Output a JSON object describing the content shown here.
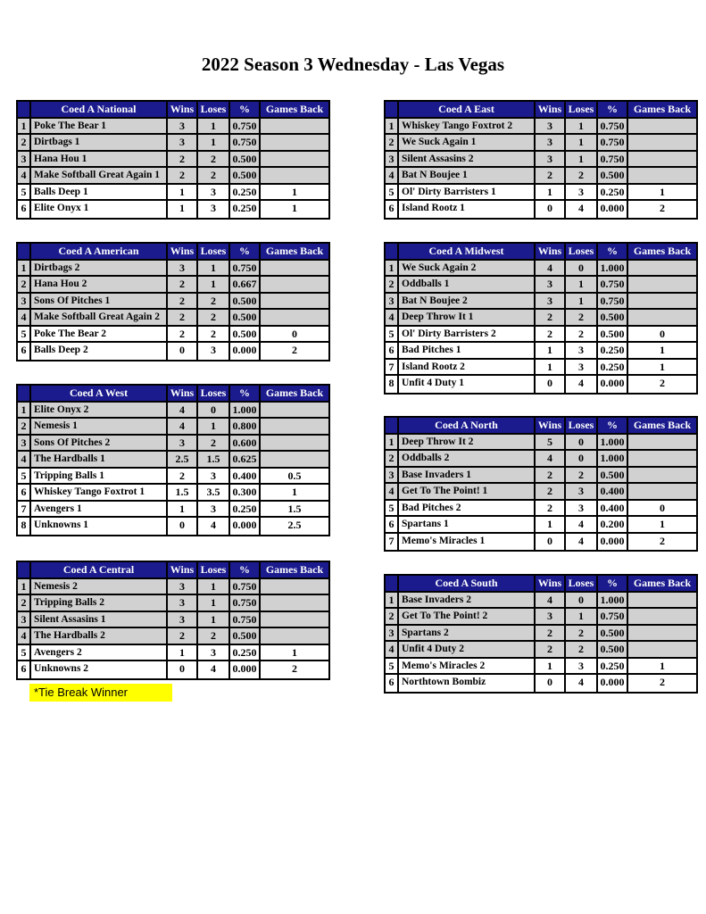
{
  "page": {
    "title": "2022 Season 3 Wednesday - Las Vegas"
  },
  "columns": {
    "wins": "Wins",
    "loses": "Loses",
    "pct": "%",
    "games_back": "Games Back"
  },
  "note": {
    "text": "*Tie Break Winner"
  },
  "colors": {
    "header_bg": "#1B1B8E",
    "header_text": "#FFFFFF",
    "shaded_row_bg": "#D1D1D1",
    "plain_row_bg": "#FFFFFF",
    "border": "#000000",
    "note_highlight": "#FFFF00"
  },
  "divisions": [
    {
      "name": "Coed A National",
      "rows": [
        {
          "rank": "1",
          "team": "Poke The Bear 1",
          "wins": "3",
          "loses": "1",
          "pct": "0.750",
          "games_back": "",
          "shaded": true
        },
        {
          "rank": "2",
          "team": "Dirtbags 1",
          "wins": "3",
          "loses": "1",
          "pct": "0.750",
          "games_back": "",
          "shaded": true
        },
        {
          "rank": "3",
          "team": "Hana Hou 1",
          "wins": "2",
          "loses": "2",
          "pct": "0.500",
          "games_back": "",
          "shaded": true
        },
        {
          "rank": "4",
          "team": "Make Softball Great Again 1",
          "wins": "2",
          "loses": "2",
          "pct": "0.500",
          "games_back": "",
          "shaded": true
        },
        {
          "rank": "5",
          "team": "Balls Deep 1",
          "wins": "1",
          "loses": "3",
          "pct": "0.250",
          "games_back": "1",
          "shaded": false
        },
        {
          "rank": "6",
          "team": "Elite Onyx 1",
          "wins": "1",
          "loses": "3",
          "pct": "0.250",
          "games_back": "1",
          "shaded": false
        }
      ]
    },
    {
      "name": "Coed A American",
      "rows": [
        {
          "rank": "1",
          "team": "Dirtbags 2",
          "wins": "3",
          "loses": "1",
          "pct": "0.750",
          "games_back": "",
          "shaded": true
        },
        {
          "rank": "2",
          "team": "Hana Hou 2",
          "wins": "2",
          "loses": "1",
          "pct": "0.667",
          "games_back": "",
          "shaded": true
        },
        {
          "rank": "3",
          "team": "Sons Of Pitches 1",
          "wins": "2",
          "loses": "2",
          "pct": "0.500",
          "games_back": "",
          "shaded": true
        },
        {
          "rank": "4",
          "team": "Make Softball Great Again 2",
          "wins": "2",
          "loses": "2",
          "pct": "0.500",
          "games_back": "",
          "shaded": true
        },
        {
          "rank": "5",
          "team": "Poke The Bear 2",
          "wins": "2",
          "loses": "2",
          "pct": "0.500",
          "games_back": "0",
          "shaded": false
        },
        {
          "rank": "6",
          "team": "Balls Deep 2",
          "wins": "0",
          "loses": "3",
          "pct": "0.000",
          "games_back": "2",
          "shaded": false
        }
      ]
    },
    {
      "name": "Coed A West",
      "rows": [
        {
          "rank": "1",
          "team": "Elite Onyx 2",
          "wins": "4",
          "loses": "0",
          "pct": "1.000",
          "games_back": "",
          "shaded": true
        },
        {
          "rank": "2",
          "team": "Nemesis 1",
          "wins": "4",
          "loses": "1",
          "pct": "0.800",
          "games_back": "",
          "shaded": true
        },
        {
          "rank": "3",
          "team": "Sons Of Pitches 2",
          "wins": "3",
          "loses": "2",
          "pct": "0.600",
          "games_back": "",
          "shaded": true
        },
        {
          "rank": "4",
          "team": "The Hardballs 1",
          "wins": "2.5",
          "loses": "1.5",
          "pct": "0.625",
          "games_back": "",
          "shaded": true
        },
        {
          "rank": "5",
          "team": "Tripping Balls 1",
          "wins": "2",
          "loses": "3",
          "pct": "0.400",
          "games_back": "0.5",
          "shaded": false
        },
        {
          "rank": "6",
          "team": "Whiskey Tango Foxtrot 1",
          "wins": "1.5",
          "loses": "3.5",
          "pct": "0.300",
          "games_back": "1",
          "shaded": false
        },
        {
          "rank": "7",
          "team": "Avengers 1",
          "wins": "1",
          "loses": "3",
          "pct": "0.250",
          "games_back": "1.5",
          "shaded": false
        },
        {
          "rank": "8",
          "team": "Unknowns 1",
          "wins": "0",
          "loses": "4",
          "pct": "0.000",
          "games_back": "2.5",
          "shaded": false
        }
      ]
    },
    {
      "name": "Coed A Central",
      "rows": [
        {
          "rank": "1",
          "team": "Nemesis 2",
          "wins": "3",
          "loses": "1",
          "pct": "0.750",
          "games_back": "",
          "shaded": true
        },
        {
          "rank": "2",
          "team": "Tripping Balls 2",
          "wins": "3",
          "loses": "1",
          "pct": "0.750",
          "games_back": "",
          "shaded": true
        },
        {
          "rank": "3",
          "team": "Silent Assasins 1",
          "wins": "3",
          "loses": "1",
          "pct": "0.750",
          "games_back": "",
          "shaded": true
        },
        {
          "rank": "4",
          "team": "The Hardballs 2",
          "wins": "2",
          "loses": "2",
          "pct": "0.500",
          "games_back": "",
          "shaded": true
        },
        {
          "rank": "5",
          "team": "Avengers 2",
          "wins": "1",
          "loses": "3",
          "pct": "0.250",
          "games_back": "1",
          "shaded": false
        },
        {
          "rank": "6",
          "team": "Unknowns 2",
          "wins": "0",
          "loses": "4",
          "pct": "0.000",
          "games_back": "2",
          "shaded": false
        }
      ]
    },
    {
      "name": "Coed A East",
      "rows": [
        {
          "rank": "1",
          "team": "Whiskey Tango Foxtrot 2",
          "wins": "3",
          "loses": "1",
          "pct": "0.750",
          "games_back": "",
          "shaded": true
        },
        {
          "rank": "2",
          "team": "We Suck Again 1",
          "wins": "3",
          "loses": "1",
          "pct": "0.750",
          "games_back": "",
          "shaded": true
        },
        {
          "rank": "3",
          "team": "Silent Assasins 2",
          "wins": "3",
          "loses": "1",
          "pct": "0.750",
          "games_back": "",
          "shaded": true
        },
        {
          "rank": "4",
          "team": "Bat N Boujee 1",
          "wins": "2",
          "loses": "2",
          "pct": "0.500",
          "games_back": "",
          "shaded": true
        },
        {
          "rank": "5",
          "team": "Ol' Dirty Barristers 1",
          "wins": "1",
          "loses": "3",
          "pct": "0.250",
          "games_back": "1",
          "shaded": false
        },
        {
          "rank": "6",
          "team": "Island Rootz 1",
          "wins": "0",
          "loses": "4",
          "pct": "0.000",
          "games_back": "2",
          "shaded": false
        }
      ]
    },
    {
      "name": "Coed A Midwest",
      "rows": [
        {
          "rank": "1",
          "team": "We Suck Again 2",
          "wins": "4",
          "loses": "0",
          "pct": "1.000",
          "games_back": "",
          "shaded": true
        },
        {
          "rank": "2",
          "team": "Oddballs 1",
          "wins": "3",
          "loses": "1",
          "pct": "0.750",
          "games_back": "",
          "shaded": true
        },
        {
          "rank": "3",
          "team": "Bat N Boujee 2",
          "wins": "3",
          "loses": "1",
          "pct": "0.750",
          "games_back": "",
          "shaded": true
        },
        {
          "rank": "4",
          "team": "Deep Throw It 1",
          "wins": "2",
          "loses": "2",
          "pct": "0.500",
          "games_back": "",
          "shaded": true
        },
        {
          "rank": "5",
          "team": "Ol' Dirty Barristers 2",
          "wins": "2",
          "loses": "2",
          "pct": "0.500",
          "games_back": "0",
          "shaded": false
        },
        {
          "rank": "6",
          "team": "Bad Pitches 1",
          "wins": "1",
          "loses": "3",
          "pct": "0.250",
          "games_back": "1",
          "shaded": false
        },
        {
          "rank": "7",
          "team": "Island Rootz 2",
          "wins": "1",
          "loses": "3",
          "pct": "0.250",
          "games_back": "1",
          "shaded": false
        },
        {
          "rank": "8",
          "team": "Unfit 4 Duty 1",
          "wins": "0",
          "loses": "4",
          "pct": "0.000",
          "games_back": "2",
          "shaded": false
        }
      ]
    },
    {
      "name": "Coed A North",
      "rows": [
        {
          "rank": "1",
          "team": "Deep Throw It 2",
          "wins": "5",
          "loses": "0",
          "pct": "1.000",
          "games_back": "",
          "shaded": true
        },
        {
          "rank": "2",
          "team": "Oddballs 2",
          "wins": "4",
          "loses": "0",
          "pct": "1.000",
          "games_back": "",
          "shaded": true
        },
        {
          "rank": "3",
          "team": "Base Invaders 1",
          "wins": "2",
          "loses": "2",
          "pct": "0.500",
          "games_back": "",
          "shaded": true
        },
        {
          "rank": "4",
          "team": "Get To The Point! 1",
          "wins": "2",
          "loses": "3",
          "pct": "0.400",
          "games_back": "",
          "shaded": true
        },
        {
          "rank": "5",
          "team": "Bad Pitches 2",
          "wins": "2",
          "loses": "3",
          "pct": "0.400",
          "games_back": "0",
          "shaded": false
        },
        {
          "rank": "6",
          "team": "Spartans 1",
          "wins": "1",
          "loses": "4",
          "pct": "0.200",
          "games_back": "1",
          "shaded": false
        },
        {
          "rank": "7",
          "team": "Memo's Miracles 1",
          "wins": "0",
          "loses": "4",
          "pct": "0.000",
          "games_back": "2",
          "shaded": false
        }
      ]
    },
    {
      "name": "Coed A South",
      "rows": [
        {
          "rank": "1",
          "team": "Base Invaders 2",
          "wins": "4",
          "loses": "0",
          "pct": "1.000",
          "games_back": "",
          "shaded": true
        },
        {
          "rank": "2",
          "team": "Get To The Point! 2",
          "wins": "3",
          "loses": "1",
          "pct": "0.750",
          "games_back": "",
          "shaded": true
        },
        {
          "rank": "3",
          "team": "Spartans 2",
          "wins": "2",
          "loses": "2",
          "pct": "0.500",
          "games_back": "",
          "shaded": true
        },
        {
          "rank": "4",
          "team": "Unfit 4 Duty 2",
          "wins": "2",
          "loses": "2",
          "pct": "0.500",
          "games_back": "",
          "shaded": true
        },
        {
          "rank": "5",
          "team": "Memo's Miracles 2",
          "wins": "1",
          "loses": "3",
          "pct": "0.250",
          "games_back": "1",
          "shaded": false
        },
        {
          "rank": "6",
          "team": "Northtown Bombiz",
          "wins": "0",
          "loses": "4",
          "pct": "0.000",
          "games_back": "2",
          "shaded": false
        }
      ]
    }
  ]
}
